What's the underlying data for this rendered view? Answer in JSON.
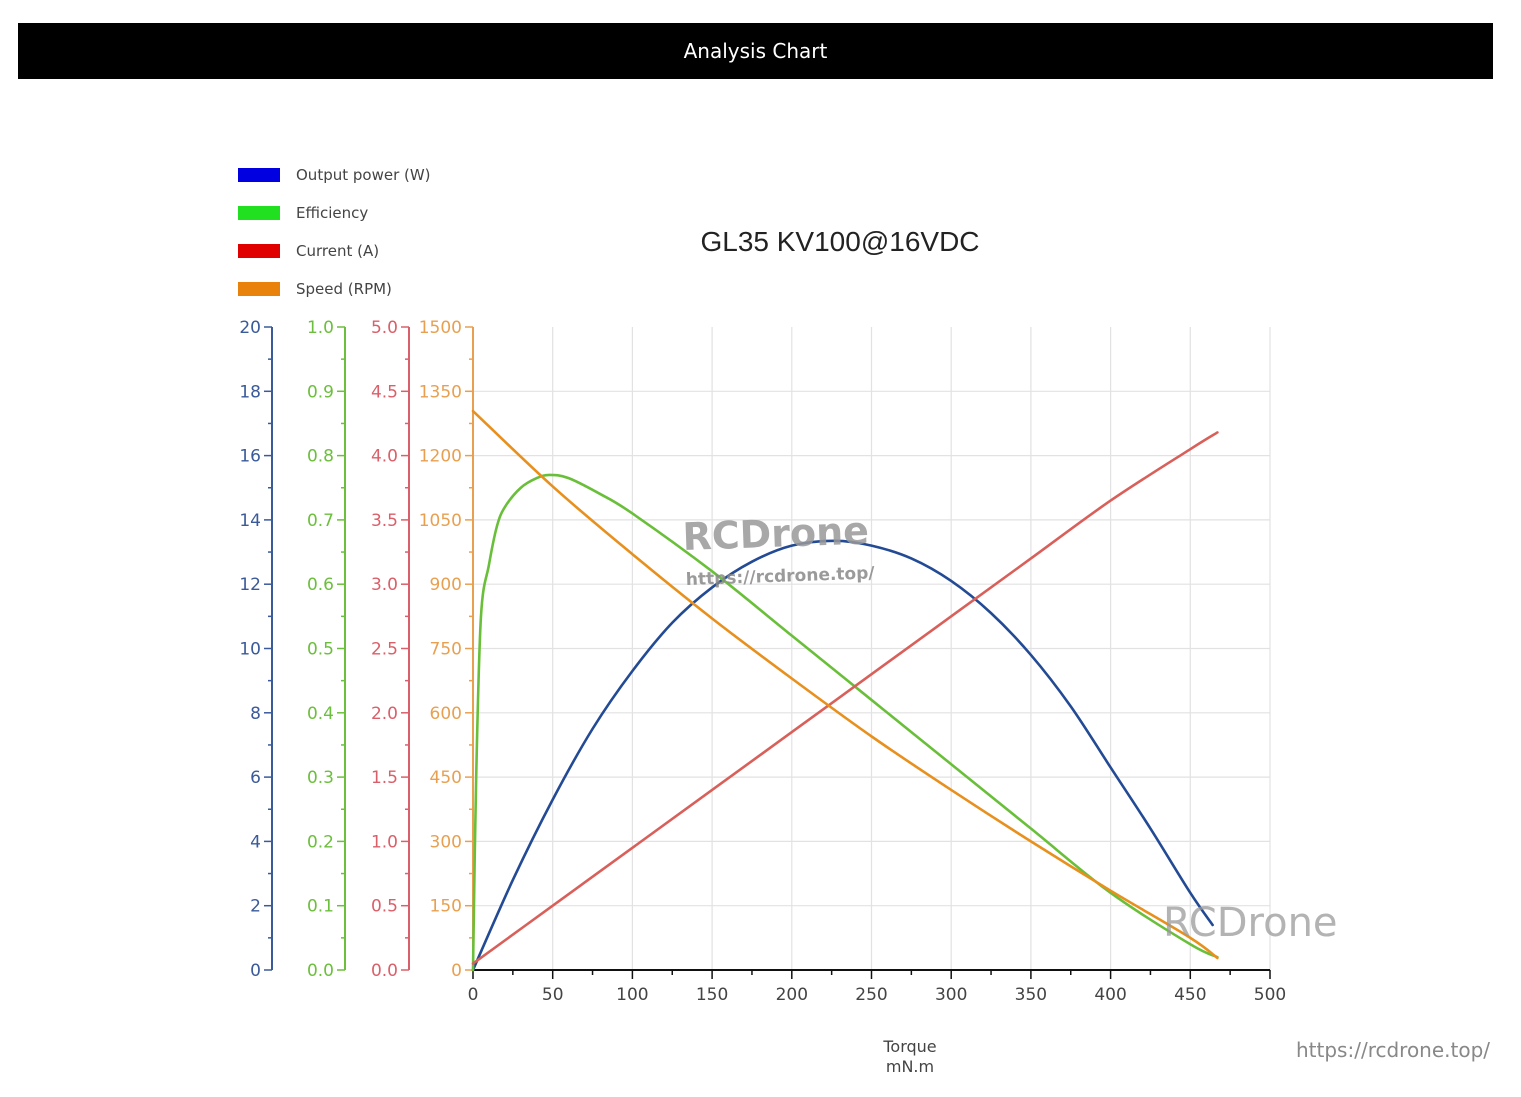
{
  "header": {
    "title": "Analysis Chart"
  },
  "legend": [
    {
      "label": "Output power (W)",
      "color": "#0000e0"
    },
    {
      "label": "Efficiency",
      "color": "#20e020"
    },
    {
      "label": "Current (A)",
      "color": "#e00000"
    },
    {
      "label": "Speed (RPM)",
      "color": "#e8820a"
    }
  ],
  "chart": {
    "title": "GL35 KV100@16VDC",
    "xlabel_line1": "Torque",
    "xlabel_line2": "mN.m"
  },
  "watermark": {
    "brand": "RCDrone",
    "url": "https://rcdrone.top/"
  },
  "footer": {
    "url": "https://rcdrone.top/"
  },
  "chart_data": {
    "type": "line",
    "title": "GL35 KV100@16VDC",
    "xlabel": "Torque (mN.m)",
    "x_ticks": [
      0,
      50,
      100,
      150,
      200,
      250,
      300,
      350,
      400,
      450,
      500
    ],
    "xlim": [
      0,
      500
    ],
    "grid": true,
    "legend_position": "top-left",
    "axes": [
      {
        "name": "Output power (W)",
        "color": "#3a5a9a",
        "ylim": [
          0,
          20
        ],
        "ticks": [
          0,
          2,
          4,
          6,
          8,
          10,
          12,
          14,
          16,
          18,
          20
        ]
      },
      {
        "name": "Efficiency",
        "color": "#6cbf3c",
        "ylim": [
          0.0,
          1.0
        ],
        "ticks": [
          "0.0",
          "0.1",
          "0.2",
          "0.3",
          "0.4",
          "0.5",
          "0.6",
          "0.7",
          "0.8",
          "0.9",
          "1.0"
        ]
      },
      {
        "name": "Current (A)",
        "color": "#d9606a",
        "ylim": [
          0.0,
          5.0
        ],
        "ticks": [
          "0.0",
          "0.5",
          "1.0",
          "1.5",
          "2.0",
          "2.5",
          "3.0",
          "3.5",
          "4.0",
          "4.5",
          "5.0"
        ]
      },
      {
        "name": "Speed (RPM)",
        "color": "#e8a050",
        "ylim": [
          0,
          1500
        ],
        "ticks": [
          0,
          150,
          300,
          450,
          600,
          750,
          900,
          1050,
          1200,
          1350,
          1500
        ]
      }
    ],
    "series": [
      {
        "name": "Output power (W)",
        "color": "#234a94",
        "axis": 0,
        "x": [
          0,
          25,
          50,
          75,
          100,
          125,
          150,
          175,
          200,
          227,
          250,
          275,
          300,
          325,
          350,
          375,
          400,
          425,
          450,
          464
        ],
        "values": [
          0,
          2.8,
          5.3,
          7.5,
          9.3,
          10.8,
          11.9,
          12.7,
          13.2,
          13.35,
          13.2,
          12.8,
          12.1,
          11.1,
          9.8,
          8.2,
          6.3,
          4.4,
          2.4,
          1.4
        ]
      },
      {
        "name": "Efficiency",
        "color": "#6abf3a",
        "axis": 1,
        "x": [
          0,
          2,
          5,
          10,
          15,
          20,
          30,
          40,
          48,
          60,
          80,
          100,
          150,
          200,
          250,
          300,
          350,
          400,
          450,
          467
        ],
        "values": [
          0.0,
          0.3,
          0.55,
          0.63,
          0.69,
          0.72,
          0.75,
          0.765,
          0.77,
          0.765,
          0.74,
          0.71,
          0.62,
          0.52,
          0.42,
          0.32,
          0.22,
          0.12,
          0.04,
          0.02
        ]
      },
      {
        "name": "Current (A)",
        "color": "#d9605a",
        "axis": 2,
        "x": [
          0,
          50,
          100,
          150,
          200,
          250,
          300,
          350,
          400,
          450,
          467
        ],
        "values": [
          0.05,
          0.5,
          0.95,
          1.4,
          1.85,
          2.3,
          2.75,
          3.2,
          3.65,
          4.05,
          4.18
        ]
      },
      {
        "name": "Speed (RPM)",
        "color": "#e8901e",
        "axis": 3,
        "x": [
          0,
          50,
          100,
          150,
          200,
          250,
          300,
          350,
          400,
          450,
          467
        ],
        "values": [
          1304,
          1128,
          970,
          820,
          680,
          545,
          420,
          300,
          185,
          75,
          28
        ]
      }
    ]
  }
}
